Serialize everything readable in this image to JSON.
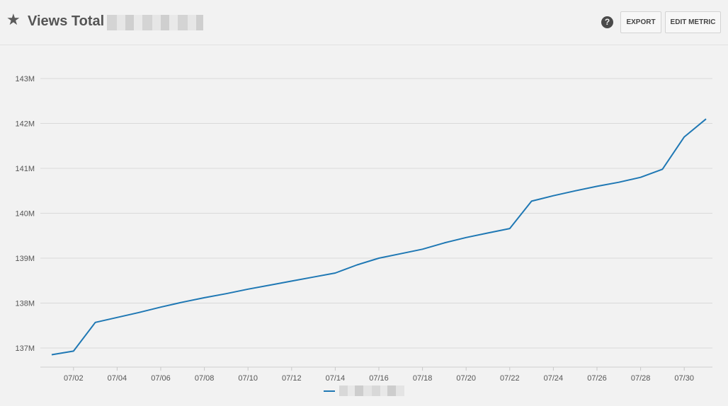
{
  "header": {
    "star_icon": "star-icon",
    "title": "Views Total |",
    "help_icon": "question-circle-icon",
    "export_label": "EXPORT",
    "edit_label": "EDIT METRIC"
  },
  "chart_data": {
    "type": "line",
    "title": "Views Total",
    "xlabel": "",
    "ylabel": "",
    "x": [
      "07/01",
      "07/02",
      "07/03",
      "07/04",
      "07/05",
      "07/06",
      "07/07",
      "07/08",
      "07/09",
      "07/10",
      "07/11",
      "07/12",
      "07/13",
      "07/14",
      "07/15",
      "07/16",
      "07/17",
      "07/18",
      "07/19",
      "07/20",
      "07/21",
      "07/22",
      "07/23",
      "07/24",
      "07/25",
      "07/26",
      "07/27",
      "07/28",
      "07/29",
      "07/30",
      "07/31"
    ],
    "x_tick_labels": [
      "07/02",
      "07/04",
      "07/06",
      "07/08",
      "07/10",
      "07/12",
      "07/14",
      "07/16",
      "07/18",
      "07/20",
      "07/22",
      "07/24",
      "07/26",
      "07/28",
      "07/30"
    ],
    "series": [
      {
        "color": "#1f78b4",
        "values": [
          136.85,
          136.93,
          137.57,
          137.68,
          137.79,
          137.91,
          138.02,
          138.12,
          138.21,
          138.31,
          138.4,
          138.49,
          138.58,
          138.67,
          138.85,
          139.0,
          139.1,
          139.2,
          139.34,
          139.46,
          139.56,
          139.66,
          140.27,
          140.39,
          140.5,
          140.6,
          140.69,
          140.8,
          140.98,
          141.7,
          142.1
        ]
      }
    ],
    "y_ticks": [
      137,
      138,
      139,
      140,
      141,
      142,
      143
    ],
    "y_tick_labels": [
      "137M",
      "138M",
      "139M",
      "140M",
      "141M",
      "142M",
      "143M"
    ],
    "ylim": [
      136.7,
      143.3
    ],
    "grid": true,
    "legend": "bottom-center"
  }
}
